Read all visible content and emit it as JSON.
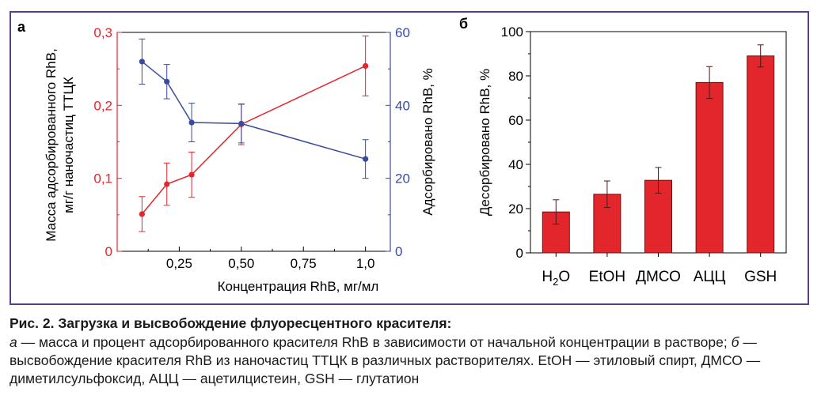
{
  "colors": {
    "frame": "#5b3f8c",
    "red": "#e3262b",
    "blue": "#3a4a9c",
    "bar_fill": "#e3262b",
    "bar_stroke": "#6e1010"
  },
  "panels": {
    "a_label": "а",
    "b_label": "б"
  },
  "chart_data": [
    {
      "type": "line",
      "panel": "а",
      "xlabel": "Концентрация RhB, мг/мл",
      "ylabel_left_line1": "Масса адсорбированного RhB,",
      "ylabel_left_line2": "мг/г наночастиц ТТЦК",
      "ylabel_right": "Адсорбировано RhB, %",
      "xlim": [
        0,
        1.1
      ],
      "ylim_left": [
        0,
        0.3
      ],
      "ylim_right": [
        0,
        60
      ],
      "x_ticks": [
        "0,25",
        "0,50",
        "0,75",
        "1,0"
      ],
      "x_tick_values": [
        0.25,
        0.5,
        0.75,
        1.0
      ],
      "y_left_ticks": [
        "0",
        "0,1",
        "0,2",
        "0,3"
      ],
      "y_left_tick_values": [
        0,
        0.1,
        0.2,
        0.3
      ],
      "y_right_ticks": [
        "0",
        "20",
        "40",
        "60"
      ],
      "y_right_tick_values": [
        0,
        20,
        40,
        60
      ],
      "series": [
        {
          "axis": "left",
          "color": "#e3262b",
          "x": [
            0.1,
            0.2,
            0.3,
            0.5,
            1.0
          ],
          "y": [
            0.051,
            0.092,
            0.105,
            0.174,
            0.254
          ],
          "err": [
            0.024,
            0.029,
            0.031,
            0.028,
            0.041
          ]
        },
        {
          "axis": "right",
          "color": "#3a4a9c",
          "x": [
            0.1,
            0.2,
            0.3,
            0.5,
            1.0
          ],
          "y": [
            52,
            46.5,
            35.3,
            35,
            25.3
          ],
          "err": [
            6.2,
            4.7,
            5.3,
            5.3,
            5.3
          ]
        }
      ]
    },
    {
      "type": "bar",
      "panel": "б",
      "ylabel": "Десорбировано RhB, %",
      "ylim": [
        0,
        100
      ],
      "y_ticks": [
        "0",
        "20",
        "40",
        "60",
        "80",
        "100"
      ],
      "y_tick_values": [
        0,
        20,
        40,
        60,
        80,
        100
      ],
      "categories": [
        "H2O",
        "EtOH",
        "ДМСО",
        "АЦЦ",
        "GSH"
      ],
      "values": [
        18.5,
        26.5,
        32.8,
        77,
        89
      ],
      "err": [
        5.5,
        6,
        5.8,
        7.2,
        5
      ]
    }
  ],
  "caption": {
    "title": "Рис. 2. Загрузка и высвобождение флуоресцентного красителя:",
    "body_a_letter": "а",
    "body_1": " — масса и процент адсорбированного красителя RhB в зависимости от начальной концентрации в растворе; ",
    "body_b_letter": "б",
    "body_2": " — высвобождение красителя RhB из наночастиц ТТЦК в различных растворителях. EtOH — этиловый спирт, ДМСО — диметилсульфоксид, АЦЦ — ацетилцистеин, GSH — глутатион"
  }
}
